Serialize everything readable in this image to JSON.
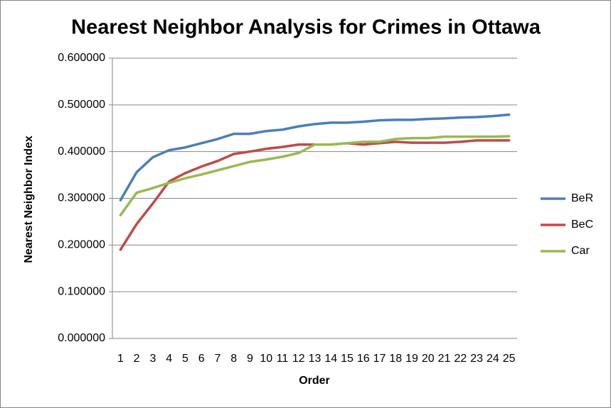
{
  "chart_data": {
    "type": "line",
    "title": "Nearest Neighbor Analysis for Crimes in Ottawa",
    "x_label": "Order",
    "y_label": "Nearest Neighbor Index",
    "categories": [
      "1",
      "2",
      "3",
      "4",
      "5",
      "6",
      "7",
      "8",
      "9",
      "10",
      "11",
      "12",
      "13",
      "14",
      "15",
      "16",
      "17",
      "18",
      "19",
      "20",
      "21",
      "22",
      "23",
      "24",
      "25"
    ],
    "series": [
      {
        "name": "BeR",
        "color": "#4a7ebb",
        "values": [
          0.296,
          0.356,
          0.388,
          0.403,
          0.409,
          0.418,
          0.427,
          0.438,
          0.438,
          0.444,
          0.447,
          0.454,
          0.459,
          0.462,
          0.462,
          0.464,
          0.467,
          0.468,
          0.468,
          0.47,
          0.471,
          0.473,
          0.474,
          0.476,
          0.479
        ]
      },
      {
        "name": "BeC",
        "color": "#be4b48",
        "values": [
          0.19,
          0.245,
          0.289,
          0.336,
          0.354,
          0.368,
          0.38,
          0.395,
          0.4,
          0.406,
          0.41,
          0.415,
          0.415,
          0.415,
          0.418,
          0.415,
          0.418,
          0.421,
          0.419,
          0.419,
          0.419,
          0.421,
          0.424,
          0.424,
          0.424
        ]
      },
      {
        "name": "Car",
        "color": "#98b954",
        "values": [
          0.264,
          0.312,
          0.322,
          0.333,
          0.343,
          0.351,
          0.36,
          0.369,
          0.378,
          0.383,
          0.389,
          0.397,
          0.415,
          0.415,
          0.418,
          0.421,
          0.421,
          0.427,
          0.429,
          0.429,
          0.432,
          0.432,
          0.432,
          0.432,
          0.433
        ]
      }
    ],
    "ylim": [
      0,
      0.6
    ],
    "yticks": [
      {
        "value": 0,
        "label": "0.000000"
      },
      {
        "value": 0.1,
        "label": "0.100000"
      },
      {
        "value": 0.2,
        "label": "0.200000"
      },
      {
        "value": 0.3,
        "label": "0.300000"
      },
      {
        "value": 0.4,
        "label": "0.400000"
      },
      {
        "value": 0.5,
        "label": "0.500000"
      },
      {
        "value": 0.6,
        "label": "0.600000"
      }
    ],
    "grid": true,
    "legend": "right"
  }
}
